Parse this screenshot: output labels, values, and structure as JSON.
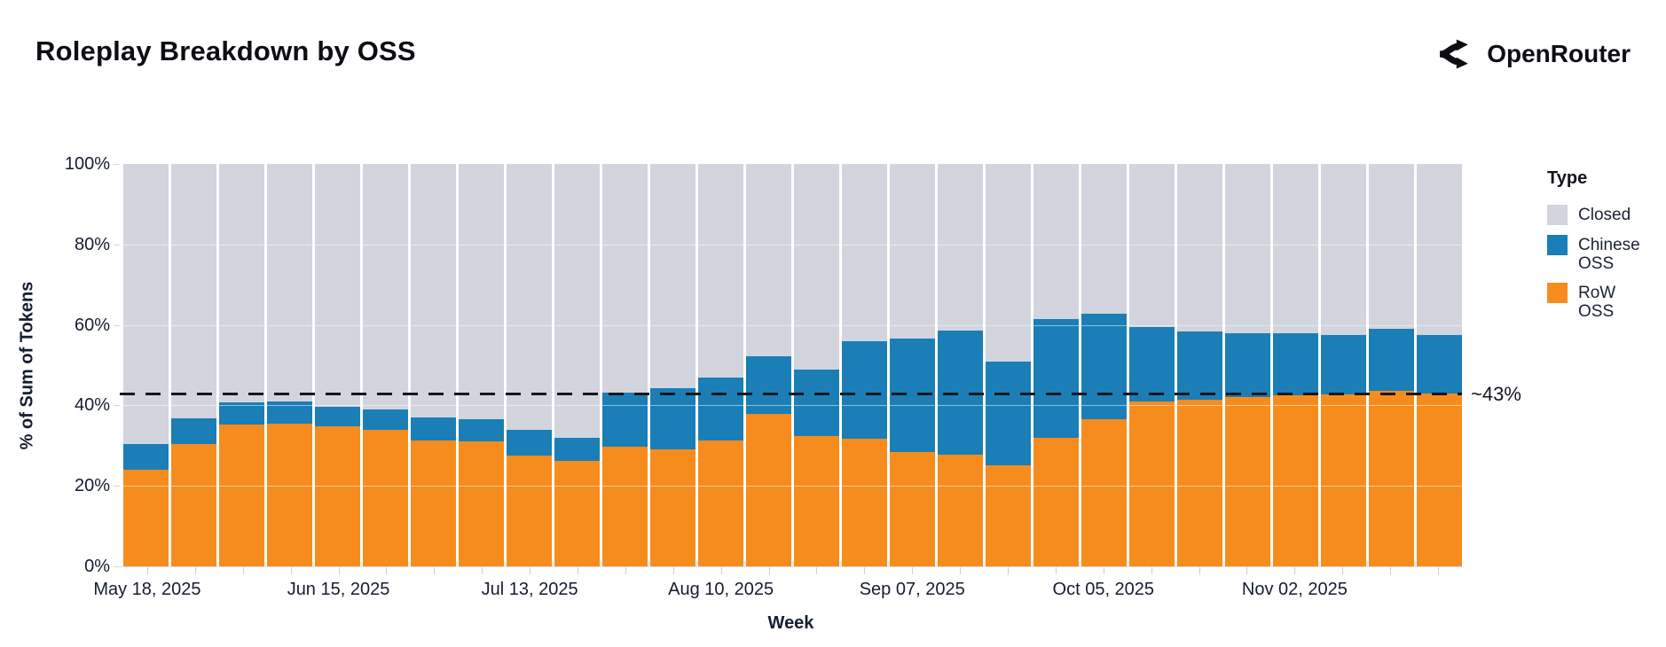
{
  "header": {
    "title": "Roleplay Breakdown by OSS",
    "brand": "OpenRouter"
  },
  "chart_data": {
    "type": "bar",
    "stacked": true,
    "percent": true,
    "title": "Roleplay Breakdown by OSS",
    "xlabel": "Week",
    "ylabel": "% of Sum of Tokens",
    "ylim": [
      0,
      100
    ],
    "y_tick_labels": [
      "0%",
      "20%",
      "40%",
      "60%",
      "80%",
      "100%"
    ],
    "x_tick_every": 4,
    "x": [
      "May 18, 2025",
      "May 25, 2025",
      "Jun 01, 2025",
      "Jun 08, 2025",
      "Jun 15, 2025",
      "Jun 22, 2025",
      "Jun 29, 2025",
      "Jul 06, 2025",
      "Jul 13, 2025",
      "Jul 20, 2025",
      "Jul 27, 2025",
      "Aug 03, 2025",
      "Aug 10, 2025",
      "Aug 17, 2025",
      "Aug 24, 2025",
      "Aug 31, 2025",
      "Sep 07, 2025",
      "Sep 14, 2025",
      "Sep 21, 2025",
      "Sep 28, 2025",
      "Oct 05, 2025",
      "Oct 12, 2025",
      "Oct 19, 2025",
      "Oct 26, 2025",
      "Nov 02, 2025",
      "Nov 09, 2025",
      "Nov 16, 2025",
      "Nov 23, 2025"
    ],
    "x_tick_labels_shown": [
      "May 18, 2025",
      "Jun 15, 2025",
      "Jul 13, 2025",
      "Aug 10, 2025",
      "Sep 07, 2025",
      "Oct 05, 2025",
      "Nov 02, 2025"
    ],
    "series": [
      {
        "name": "RoW OSS",
        "color": "#f78c1e",
        "values": [
          24.0,
          30.5,
          35.2,
          35.4,
          34.7,
          34.0,
          31.3,
          31.0,
          27.6,
          26.2,
          29.8,
          29.0,
          31.2,
          37.8,
          32.3,
          31.7,
          28.4,
          27.8,
          25.0,
          32.0,
          36.6,
          41.0,
          41.4,
          42.1,
          42.4,
          42.7,
          43.6,
          42.9
        ]
      },
      {
        "name": "Chinese OSS",
        "color": "#1b7eb6",
        "values": [
          6.3,
          6.2,
          5.5,
          5.6,
          5.0,
          4.9,
          5.7,
          5.5,
          6.4,
          5.8,
          13.4,
          15.2,
          15.7,
          14.4,
          16.7,
          24.3,
          28.1,
          30.9,
          25.9,
          29.4,
          26.2,
          18.5,
          17.0,
          15.9,
          15.5,
          14.7,
          15.4,
          14.5
        ]
      },
      {
        "name": "Closed",
        "color": "#d2d4de",
        "values": [
          69.7,
          63.3,
          59.3,
          59.0,
          60.3,
          61.1,
          63.0,
          63.5,
          66.0,
          68.0,
          56.8,
          55.8,
          53.1,
          47.8,
          51.0,
          44.0,
          43.5,
          41.3,
          49.1,
          38.6,
          37.2,
          40.5,
          41.6,
          42.0,
          42.1,
          42.6,
          41.0,
          42.6
        ]
      }
    ],
    "reference_line": {
      "value": 43,
      "label": "~43%",
      "style": "dashed",
      "color": "#15161d"
    },
    "legend_position": "right",
    "grid": "horizontal-faint"
  },
  "legend": {
    "title": "Type",
    "items": [
      {
        "label": "Closed",
        "color": "#d2d4de"
      },
      {
        "label": "Chinese OSS",
        "color": "#1b7eb6"
      },
      {
        "label": "RoW OSS",
        "color": "#f78c1e"
      }
    ]
  }
}
